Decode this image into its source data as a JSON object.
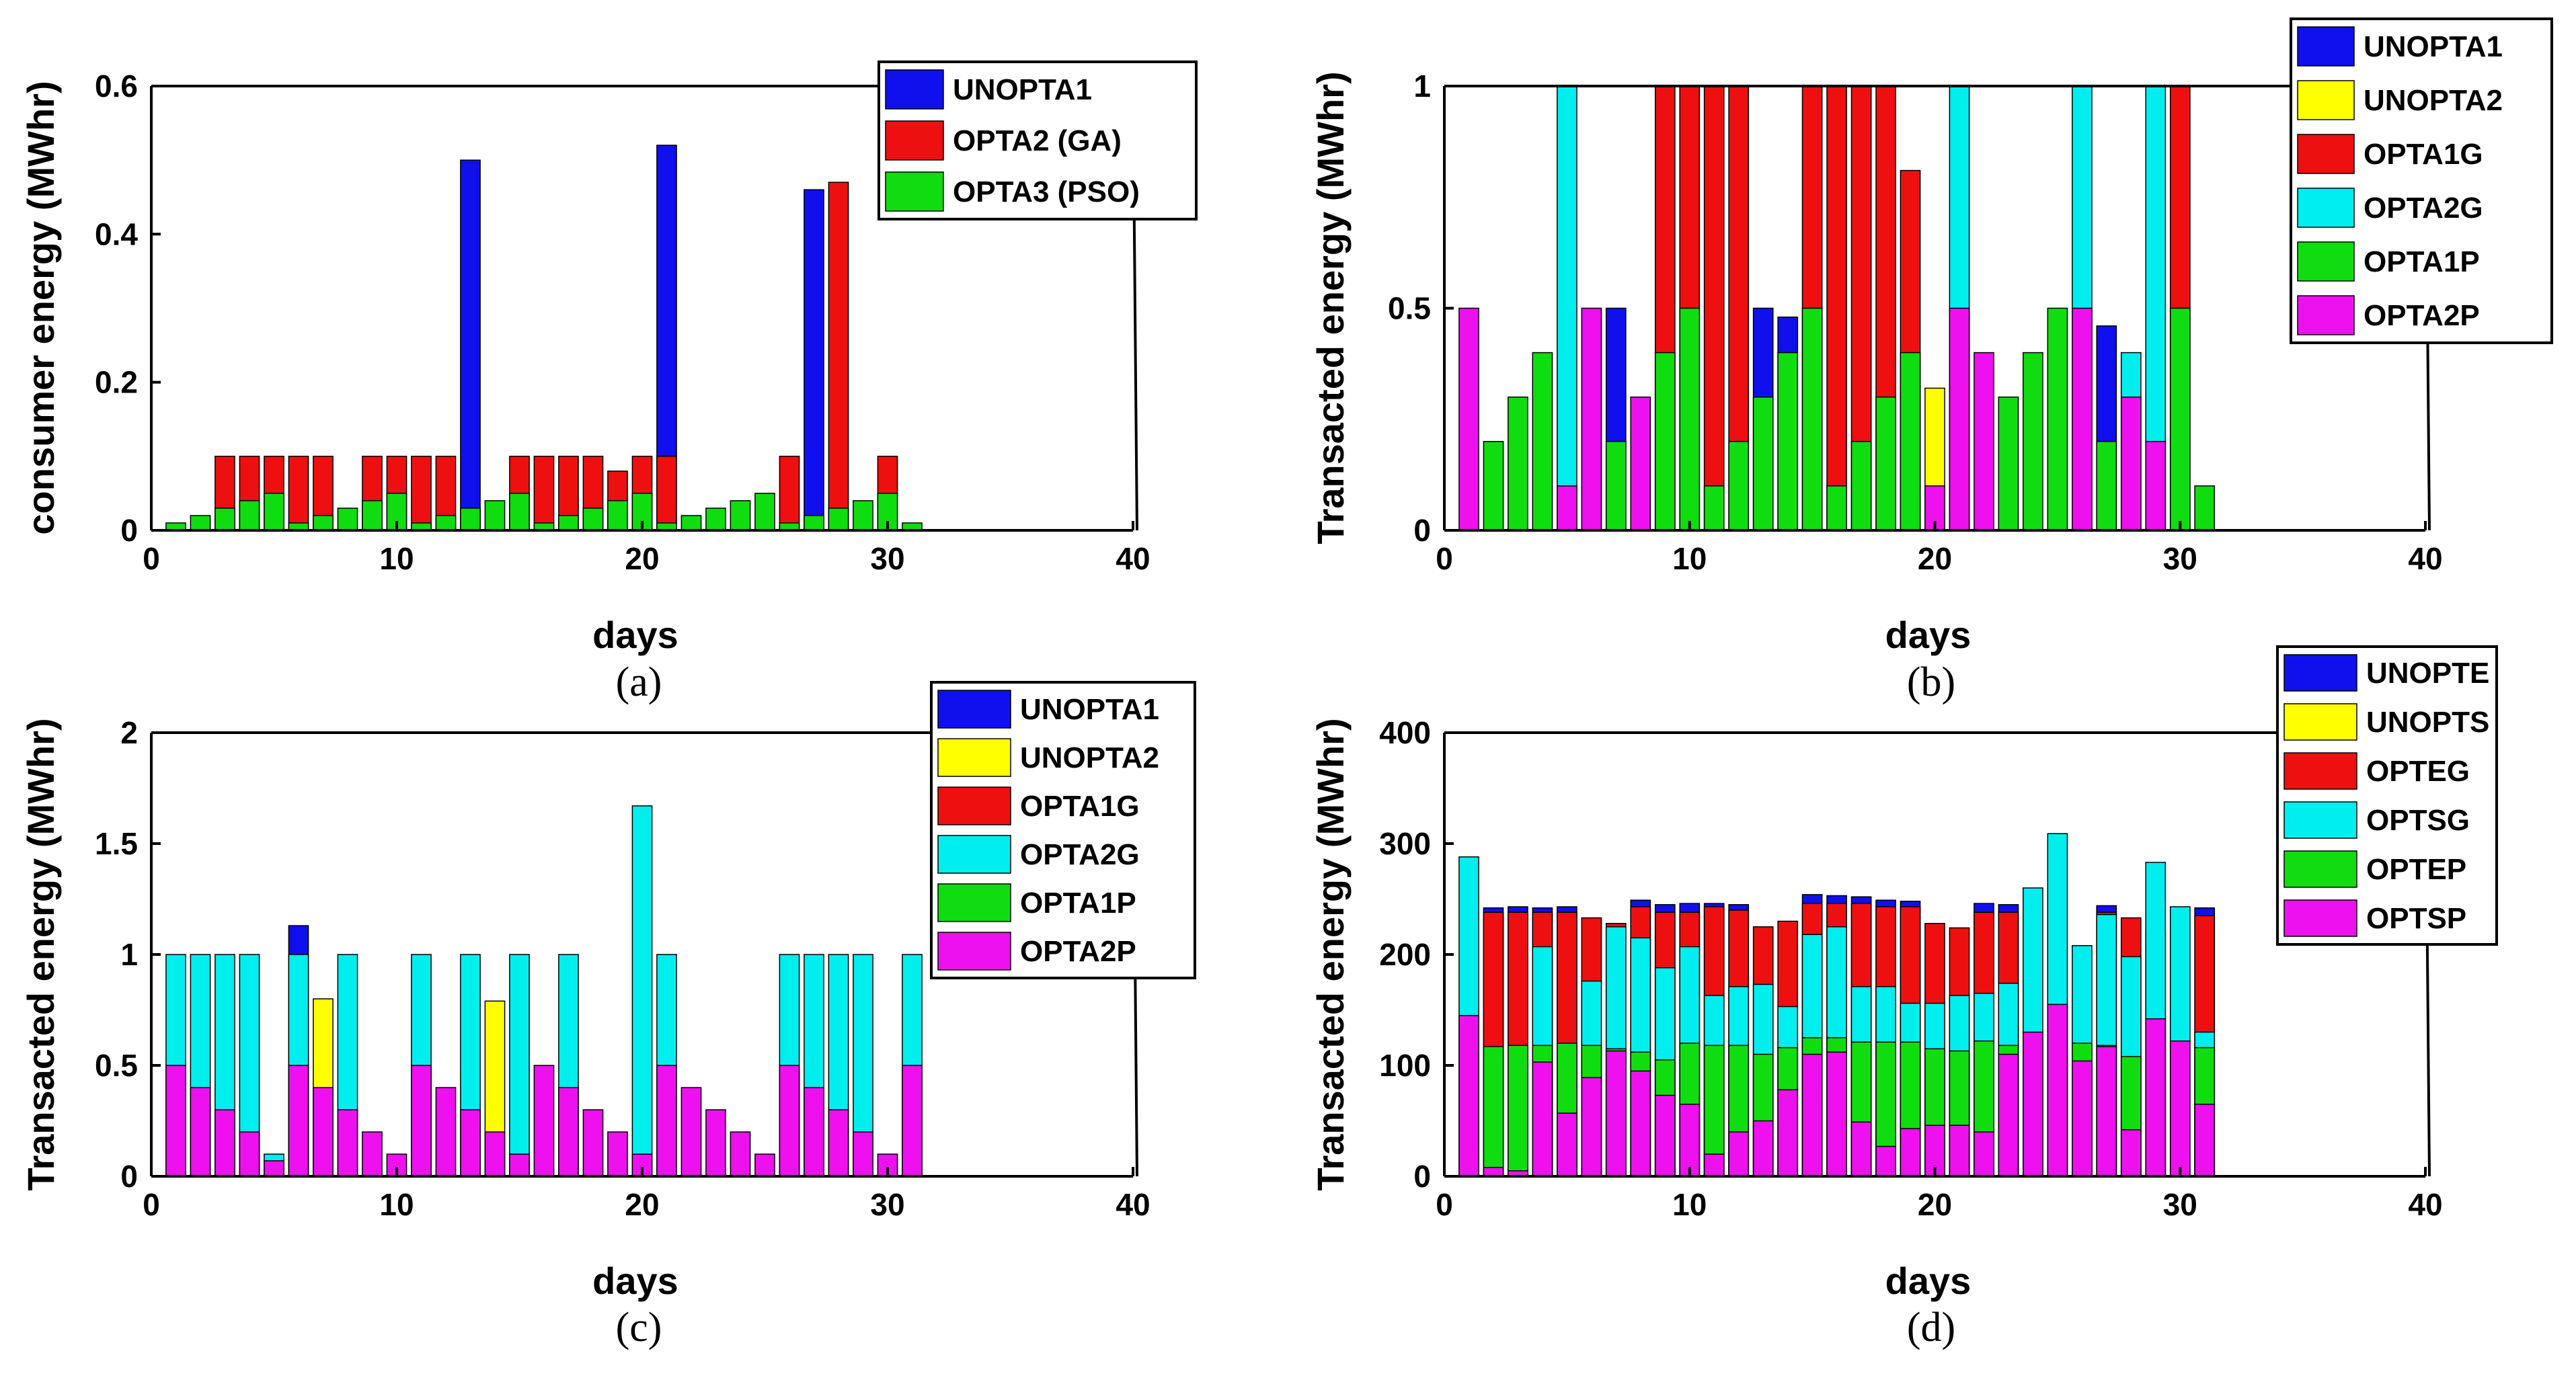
{
  "colors": {
    "blue": "#1010EE",
    "yellow": "#FFFF00",
    "red": "#EE1010",
    "cyan": "#00EEEE",
    "green": "#10DD10",
    "magenta": "#EE10EE"
  },
  "chart_data": [
    {
      "id": "a",
      "type": "bar",
      "caption": "(a)",
      "xlabel": "days",
      "ylabel": "consumer energy (MWhr)",
      "xlim": [
        0,
        40
      ],
      "ylim": [
        0,
        0.6
      ],
      "xticks": [
        0,
        10,
        20,
        30,
        40
      ],
      "xtick_labels": [
        "0",
        "10",
        "20",
        "30",
        "40"
      ],
      "yticks": [
        0,
        0.2,
        0.4,
        0.6
      ],
      "ytick_labels": [
        "0",
        "0.2",
        "0.4",
        "0.6"
      ],
      "mode": "overlay",
      "legend": "top-right",
      "series": [
        {
          "name": "UNOPTA1",
          "color": "blue",
          "values": [
            0,
            0,
            0,
            0,
            0,
            0,
            0,
            0,
            0,
            0,
            0,
            0,
            0.5,
            0,
            0,
            0,
            0,
            0,
            0,
            0,
            0.52,
            0,
            0,
            0,
            0,
            0,
            0.46,
            0,
            0,
            0,
            0
          ]
        },
        {
          "name": "OPTA2 (GA)",
          "color": "red",
          "values": [
            0,
            0,
            0.1,
            0.1,
            0.1,
            0.1,
            0.1,
            0,
            0.1,
            0.1,
            0.1,
            0.1,
            0,
            0,
            0.1,
            0.1,
            0.1,
            0.1,
            0.08,
            0.1,
            0.1,
            0,
            0,
            0,
            0,
            0.1,
            0,
            0.47,
            0,
            0.1,
            0
          ]
        },
        {
          "name": "OPTA3 (PSO)",
          "color": "green",
          "values": [
            0.01,
            0.02,
            0.03,
            0.04,
            0.05,
            0.01,
            0.02,
            0.03,
            0.04,
            0.05,
            0.01,
            0.02,
            0.03,
            0.04,
            0.05,
            0.01,
            0.02,
            0.03,
            0.04,
            0.05,
            0.01,
            0.02,
            0.03,
            0.04,
            0.05,
            0.01,
            0.02,
            0.03,
            0.04,
            0.05,
            0.01
          ]
        }
      ]
    },
    {
      "id": "b",
      "type": "bar",
      "caption": "(b)",
      "xlabel": "days",
      "ylabel": "Transacted energy (MWhr)",
      "xlim": [
        0,
        40
      ],
      "ylim": [
        0,
        1
      ],
      "xticks": [
        0,
        10,
        20,
        30,
        40
      ],
      "xtick_labels": [
        "0",
        "10",
        "20",
        "30",
        "40"
      ],
      "yticks": [
        0,
        0.5,
        1
      ],
      "ytick_labels": [
        "0",
        "0.5",
        "1"
      ],
      "mode": "overlay",
      "legend": "outside-top-right",
      "series": [
        {
          "name": "UNOPTA1",
          "color": "blue",
          "values": [
            0,
            0,
            0,
            0,
            0,
            0,
            0.5,
            0,
            0,
            0,
            0,
            0,
            0.5,
            0.48,
            0,
            0,
            0,
            0,
            0,
            0,
            0,
            0,
            0,
            0,
            0,
            0,
            0.46,
            0,
            0,
            0,
            0
          ]
        },
        {
          "name": "UNOPTA2",
          "color": "yellow",
          "values": [
            0,
            0,
            0,
            0,
            0,
            0,
            0,
            0,
            0,
            0,
            0,
            0,
            0,
            0,
            0,
            0,
            0,
            0,
            0,
            0.32,
            0,
            0,
            0,
            0,
            0,
            0,
            0,
            0,
            0,
            0,
            0
          ]
        },
        {
          "name": "OPTA1G",
          "color": "red",
          "values": [
            0,
            0,
            0,
            0,
            0,
            0,
            0,
            0,
            1,
            1,
            1,
            1,
            0,
            0,
            1,
            1,
            1,
            1,
            0.81,
            0,
            0,
            0,
            0,
            0,
            0,
            0,
            0,
            0,
            0,
            1,
            0
          ]
        },
        {
          "name": "OPTA2G",
          "color": "cyan",
          "values": [
            0,
            0,
            0,
            0,
            1,
            0,
            0,
            0,
            0,
            0,
            0,
            0,
            0,
            0,
            0,
            0,
            0,
            0,
            0,
            0,
            1,
            0,
            0,
            0,
            0,
            1,
            0,
            0.4,
            1,
            0,
            0
          ]
        },
        {
          "name": "OPTA1P",
          "color": "green",
          "values": [
            0,
            0.2,
            0.3,
            0.4,
            0,
            0,
            0.2,
            0,
            0.4,
            0.5,
            0.1,
            0.2,
            0.3,
            0.4,
            0.5,
            0.1,
            0.2,
            0.3,
            0.4,
            0,
            0,
            0,
            0.3,
            0.4,
            0.5,
            0,
            0.2,
            0,
            0,
            0.5,
            0.1
          ]
        },
        {
          "name": "OPTA2P",
          "color": "magenta",
          "values": [
            0.5,
            0,
            0,
            0,
            0.1,
            0.5,
            0,
            0.3,
            0,
            0,
            0,
            0,
            0,
            0,
            0,
            0,
            0,
            0,
            0,
            0.1,
            0.5,
            0.4,
            0,
            0,
            0,
            0.5,
            0,
            0.3,
            0.2,
            0,
            0
          ]
        }
      ]
    },
    {
      "id": "c",
      "type": "bar",
      "caption": "(c)",
      "xlabel": "days",
      "ylabel": "Transacted energy (MWhr)",
      "xlim": [
        0,
        40
      ],
      "ylim": [
        0,
        2
      ],
      "xticks": [
        0,
        10,
        20,
        30,
        40
      ],
      "xtick_labels": [
        "0",
        "10",
        "20",
        "30",
        "40"
      ],
      "yticks": [
        0,
        0.5,
        1,
        1.5,
        2
      ],
      "ytick_labels": [
        "0",
        "0.5",
        "1",
        "1.5",
        "2"
      ],
      "mode": "overlay",
      "legend": "top-right",
      "series": [
        {
          "name": "UNOPTA1",
          "color": "blue",
          "values": [
            0,
            0,
            0,
            0,
            0,
            1.13,
            0,
            0,
            0,
            0,
            0,
            0,
            0,
            0,
            0,
            0,
            0,
            0,
            0,
            0,
            0,
            0,
            0,
            0,
            0,
            0,
            0,
            0,
            0,
            0,
            0
          ]
        },
        {
          "name": "UNOPTA2",
          "color": "yellow",
          "values": [
            0,
            0,
            0,
            0,
            0,
            0,
            0.8,
            0,
            0,
            0,
            0,
            0,
            0,
            0.79,
            0,
            0,
            0,
            0,
            0,
            0,
            0,
            0,
            0,
            0,
            0,
            0,
            0,
            0,
            0,
            0,
            0
          ]
        },
        {
          "name": "OPTA1G",
          "color": "red",
          "values": [
            0,
            0,
            0,
            0,
            0,
            0,
            0,
            0,
            0,
            0,
            0,
            0,
            0,
            0,
            0,
            0,
            0,
            0,
            0,
            0,
            0,
            0,
            0,
            0,
            0,
            0,
            0,
            0,
            0,
            0,
            0
          ]
        },
        {
          "name": "OPTA2G",
          "color": "cyan",
          "values": [
            1,
            1,
            1,
            1,
            0.1,
            1,
            0,
            1,
            0,
            0,
            1,
            0,
            1,
            0,
            1,
            0,
            1,
            0,
            0,
            1.67,
            1,
            0,
            0,
            0,
            0,
            1,
            1,
            1,
            1,
            0,
            1
          ]
        },
        {
          "name": "OPTA1P",
          "color": "green",
          "values": [
            0,
            0,
            0,
            0,
            0,
            0,
            0,
            0,
            0,
            0,
            0,
            0,
            0,
            0,
            0,
            0,
            0,
            0,
            0,
            0,
            0,
            0,
            0,
            0,
            0,
            0,
            0,
            0,
            0,
            0,
            0
          ]
        },
        {
          "name": "OPTA2P",
          "color": "magenta",
          "values": [
            0.5,
            0.4,
            0.3,
            0.2,
            0.07,
            0.5,
            0.4,
            0.3,
            0.2,
            0.1,
            0.5,
            0.4,
            0.3,
            0.2,
            0.1,
            0.5,
            0.4,
            0.3,
            0.2,
            0.1,
            0.5,
            0.4,
            0.3,
            0.2,
            0.1,
            0.5,
            0.4,
            0.3,
            0.2,
            0.1,
            0.5
          ]
        }
      ]
    },
    {
      "id": "d",
      "type": "bar",
      "caption": "(d)",
      "xlabel": "days",
      "ylabel": "Transacted energy (MWhr)",
      "xlim": [
        0,
        40
      ],
      "ylim": [
        0,
        400
      ],
      "xticks": [
        0,
        10,
        20,
        30,
        40
      ],
      "xtick_labels": [
        "0",
        "10",
        "20",
        "30",
        "40"
      ],
      "yticks": [
        0,
        100,
        200,
        300,
        400
      ],
      "ytick_labels": [
        "0",
        "100",
        "200",
        "300",
        "400"
      ],
      "mode": "overlay",
      "legend": "outside-top-right",
      "series": [
        {
          "name": "UNOPTE",
          "color": "blue",
          "values": [
            0,
            242,
            243,
            242,
            243,
            0,
            0,
            249,
            245,
            246,
            246,
            245,
            0,
            0,
            254,
            253,
            252,
            249,
            248,
            0,
            0,
            246,
            245,
            0,
            0,
            0,
            244,
            0,
            0,
            0,
            242
          ]
        },
        {
          "name": "UNOPTS",
          "color": "yellow",
          "values": [
            0,
            0,
            0,
            0,
            0,
            0,
            0,
            0,
            0,
            0,
            0,
            0,
            0,
            0,
            0,
            0,
            0,
            0,
            0,
            0,
            0,
            0,
            0,
            0,
            0,
            0,
            0,
            0,
            0,
            0,
            0
          ]
        },
        {
          "name": "OPTEG",
          "color": "red",
          "values": [
            0,
            238,
            238,
            238,
            238,
            233,
            228,
            243,
            238,
            238,
            243,
            240,
            225,
            230,
            246,
            246,
            246,
            243,
            243,
            228,
            224,
            238,
            238,
            0,
            0,
            0,
            238,
            233,
            220,
            0,
            235
          ]
        },
        {
          "name": "OPTSG",
          "color": "cyan",
          "values": [
            288,
            0,
            0,
            207,
            0,
            176,
            225,
            215,
            188,
            207,
            163,
            171,
            173,
            153,
            218,
            225,
            171,
            171,
            156,
            156,
            163,
            165,
            174,
            260,
            309,
            208,
            236,
            198,
            283,
            243,
            130
          ]
        },
        {
          "name": "OPTEP",
          "color": "green",
          "values": [
            0,
            117,
            118,
            118,
            120,
            118,
            115,
            112,
            105,
            120,
            118,
            118,
            110,
            116,
            125,
            125,
            121,
            121,
            121,
            115,
            113,
            122,
            118,
            0,
            0,
            120,
            118,
            108,
            0,
            0,
            116
          ]
        },
        {
          "name": "OPTSP",
          "color": "magenta",
          "values": [
            145,
            8,
            5,
            103,
            57,
            89,
            113,
            95,
            73,
            65,
            20,
            40,
            50,
            78,
            110,
            112,
            49,
            27,
            43,
            46,
            46,
            40,
            110,
            130,
            155,
            104,
            117,
            42,
            142,
            122,
            65
          ]
        }
      ]
    }
  ]
}
